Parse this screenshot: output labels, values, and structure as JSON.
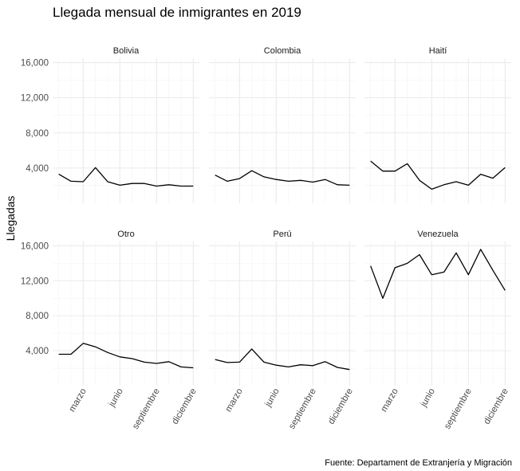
{
  "chart_data": {
    "type": "line",
    "title": "Llegada mensual de inmigrantes en 2019",
    "ylabel": "Llegadas",
    "xlabel": "",
    "caption": "Fuente: Departament de Extranjería y Migración",
    "x": [
      1,
      2,
      3,
      4,
      5,
      6,
      7,
      8,
      9,
      10,
      11,
      12
    ],
    "x_ticks": [
      {
        "month": 3,
        "label": "marzo"
      },
      {
        "month": 6,
        "label": "junio"
      },
      {
        "month": 9,
        "label": "septiembre"
      },
      {
        "month": 12,
        "label": "diciembre"
      }
    ],
    "y_ticks": [
      4000,
      8000,
      12000,
      16000
    ],
    "y_tick_labels": [
      "4,000",
      "8,000",
      "12,000",
      "16,000"
    ],
    "ylim": [
      0,
      16500
    ],
    "xlim": [
      0.5,
      12.5
    ],
    "grid": true,
    "facets": [
      {
        "name": "Bolivia",
        "values": [
          3300,
          2500,
          2450,
          4050,
          2450,
          2050,
          2250,
          2250,
          1950,
          2100,
          1950,
          1950
        ]
      },
      {
        "name": "Colombia",
        "values": [
          3200,
          2500,
          2800,
          3700,
          3000,
          2700,
          2500,
          2600,
          2400,
          2700,
          2100,
          2050
        ]
      },
      {
        "name": "Haití",
        "values": [
          4800,
          3650,
          3650,
          4500,
          2600,
          1600,
          2100,
          2450,
          2050,
          3300,
          2850,
          4050
        ]
      },
      {
        "name": "Otro",
        "values": [
          3600,
          3600,
          4850,
          4450,
          3800,
          3300,
          3100,
          2700,
          2550,
          2750,
          2150,
          2050
        ]
      },
      {
        "name": "Perú",
        "values": [
          3000,
          2650,
          2700,
          4200,
          2700,
          2350,
          2150,
          2400,
          2300,
          2750,
          2100,
          1850
        ]
      },
      {
        "name": "Venezuela",
        "values": [
          13700,
          10000,
          13500,
          14000,
          15000,
          12700,
          13000,
          15200,
          12700,
          15600,
          13200,
          10900
        ]
      }
    ]
  }
}
